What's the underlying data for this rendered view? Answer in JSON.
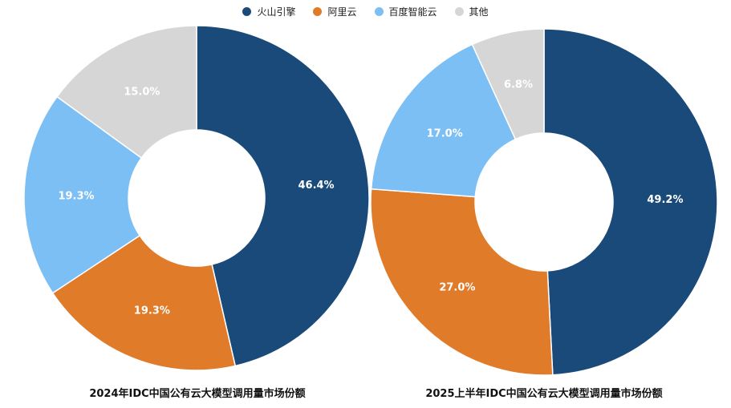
{
  "legend": [
    {
      "label": "火山引擎",
      "color": "#1a4a7a"
    },
    {
      "label": "阿里云",
      "color": "#e07b2a"
    },
    {
      "label": "百度智能云",
      "color": "#7bbff5"
    },
    {
      "label": "其他",
      "color": "#d6d6d6"
    }
  ],
  "chart_data": [
    {
      "type": "pie",
      "title": "2024年IDC中国公有云大模型调用量市场份额",
      "categories": [
        "火山引擎",
        "阿里云",
        "百度智能云",
        "其他"
      ],
      "values": [
        46.4,
        19.3,
        19.3,
        15.0
      ],
      "labels": [
        "46.4%",
        "19.3%",
        "19.3%",
        "15.0%"
      ],
      "colors": [
        "#1a4a7a",
        "#e07b2a",
        "#7bbff5",
        "#d6d6d6"
      ],
      "donut": true
    },
    {
      "type": "pie",
      "title": "2025上半年IDC中国公有云大模型调用量市场份额",
      "categories": [
        "火山引擎",
        "阿里云",
        "百度智能云",
        "其他"
      ],
      "values": [
        49.2,
        27.0,
        17.0,
        6.8
      ],
      "labels": [
        "49.2%",
        "27.0%",
        "17.0%",
        "6.8%"
      ],
      "colors": [
        "#1a4a7a",
        "#e07b2a",
        "#7bbff5",
        "#d6d6d6"
      ],
      "donut": true
    }
  ]
}
